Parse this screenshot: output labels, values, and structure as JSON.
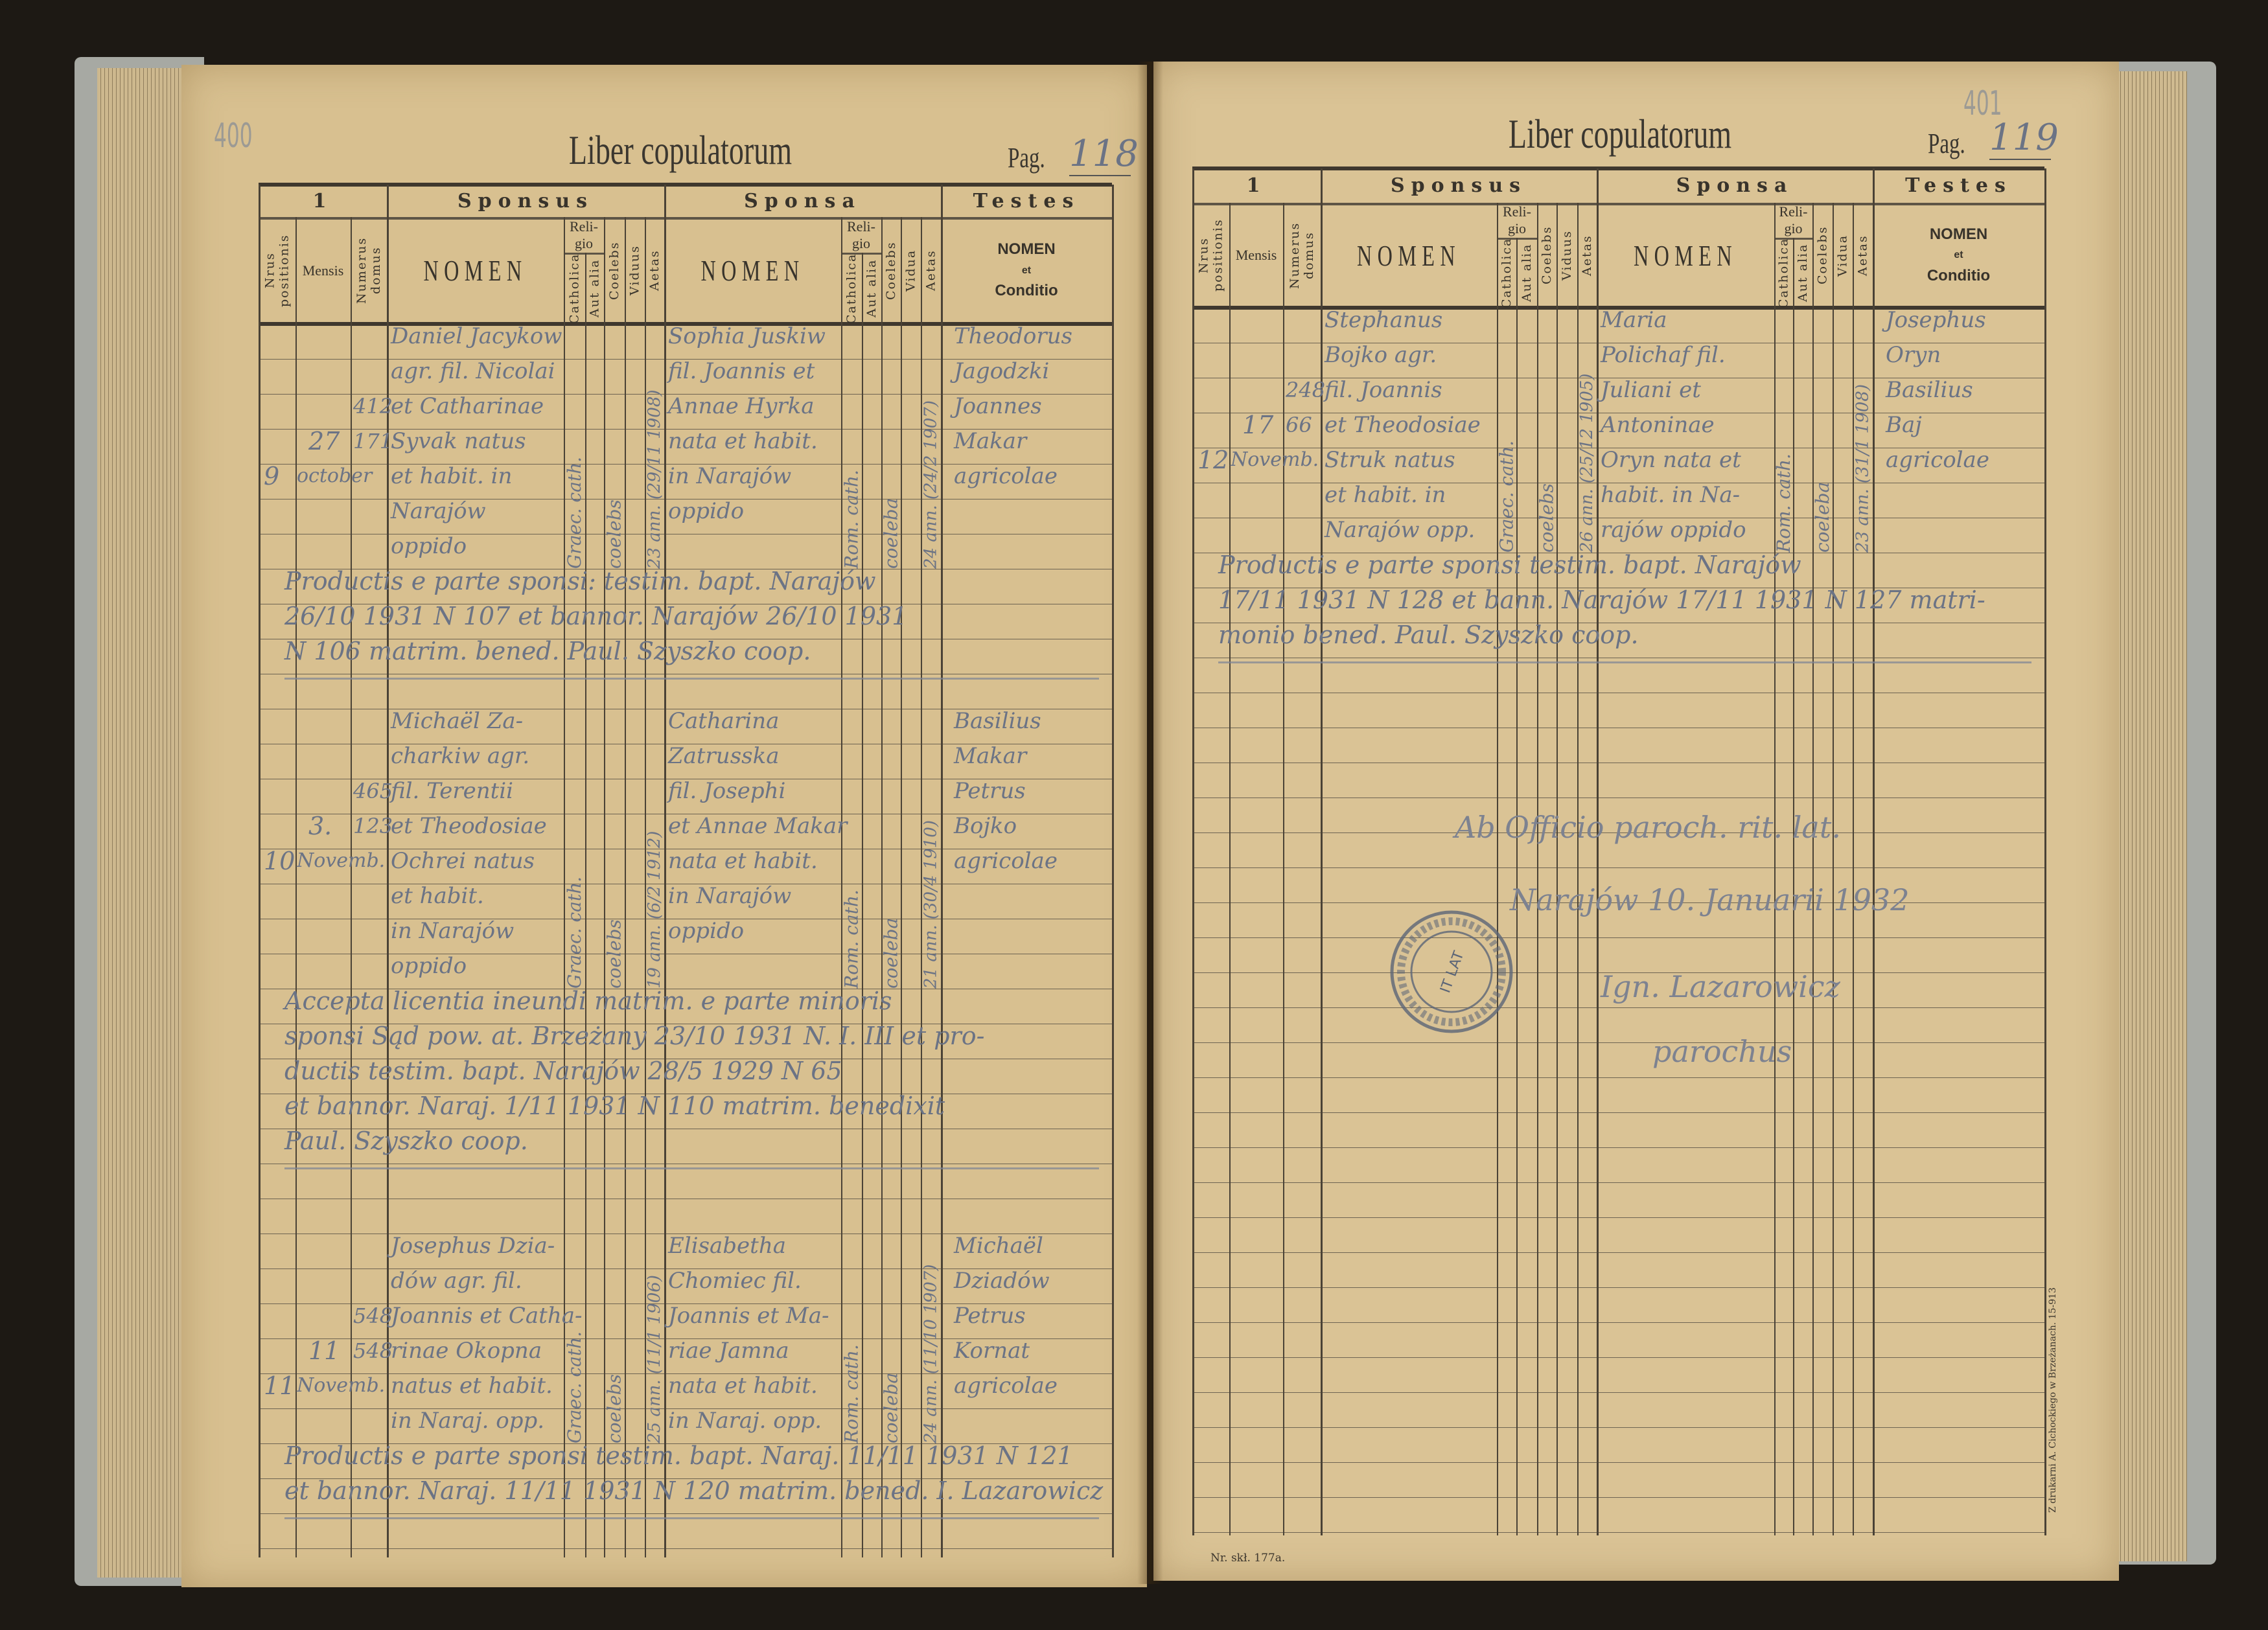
{
  "pages": [
    {
      "title": "Liber copulatorum",
      "pag_label": "Pag.",
      "pag_number": "118",
      "pencil_folio": "400",
      "header": {
        "group_1": "1",
        "sponsus": "Sponsus",
        "sponsa": "Sponsa",
        "testes": "Testes",
        "nrus_positionis": "Nrus positionis",
        "mensis": "Mensis",
        "numerus_domus": "Numerus domus",
        "nomen": "NOMEN",
        "religio": "Reli-gio",
        "catholica": "Catholica",
        "aut_alia": "Aut alia",
        "coelebs": "Coelebs",
        "viduus": "Viduus",
        "vidua": "Vidua",
        "aetas": "Aetas",
        "testes_nomen": "NOMEN",
        "testes_et": "et",
        "testes_conditio": "Conditio"
      },
      "entries": [
        {
          "nr": "9",
          "day": "27",
          "month": "october",
          "domus_top": "412",
          "domus_bottom": "171",
          "sponsus": [
            "Daniel Jacykow",
            "agr. fil. Nicolai",
            "et Catharinae",
            "Syvak natus",
            "et habit. in",
            "Narajów",
            "oppido"
          ],
          "sponsus_religio": "Graec. cath.",
          "sponsus_status": "coelebs",
          "sponsus_aetas": "23 ann. (29/11 1908)",
          "sponsa": [
            "Sophia Juskiw",
            "fil. Joannis et",
            "Annae Hyrka",
            "nata et habit.",
            "in Narajów",
            "oppido"
          ],
          "sponsa_religio": "Rom. cath.",
          "sponsa_status": "coeleba",
          "sponsa_aetas": "24 ann. (24/2 1907)",
          "testes": [
            "Theodorus",
            "Jagodzki",
            "Joannes",
            "Makar",
            "agricolae"
          ],
          "remark": [
            "Productis e parte sponsi: testim. bapt. Narajów",
            "26/10 1931 N 107 et bannor. Narajów 26/10 1931",
            "N 106 matrim. bened. Paul. Szyszko coop."
          ]
        },
        {
          "nr": "10",
          "day": "3.",
          "month": "Novemb.",
          "domus_top": "465",
          "domus_bottom": "123",
          "sponsus": [
            "Michaël Za-",
            "charkiw agr.",
            "fil. Terentii",
            "et Theodosiae",
            "Ochrei natus",
            "et habit.",
            "in Narajów",
            "oppido"
          ],
          "sponsus_religio": "Graec. cath.",
          "sponsus_status": "coelebs",
          "sponsus_aetas": "19 ann. (6/2 1912)",
          "sponsa": [
            "Catharina",
            "Zatrusska",
            "fil. Josephi",
            "et Annae Makar",
            "nata et habit.",
            "in Narajów",
            "oppido"
          ],
          "sponsa_religio": "Rom. cath.",
          "sponsa_status": "coeleba",
          "sponsa_aetas": "21 ann. (30/4 1910)",
          "testes": [
            "Basilius",
            "Makar",
            "Petrus",
            "Bojko",
            "agricolae"
          ],
          "remark": [
            "Accepta licentia ineundi matrim. e parte minoris",
            "sponsi Sąd pow. at. Brzeżany 23/10 1931 N. I. III et pro-",
            "ductis testim. bapt. Narajów 28/5 1929 N 65",
            "et bannor. Naraj. 1/11 1931 N 110 matrim. benedixit",
            "Paul. Szyszko coop."
          ]
        },
        {
          "nr": "11",
          "day": "11",
          "month": "Novemb.",
          "domus_top": "548",
          "domus_bottom": "548",
          "sponsus": [
            "Josephus Dzia-",
            "dów agr. fil.",
            "Joannis et Catha-",
            "rinae Okopna",
            "natus et habit.",
            "in Naraj. opp."
          ],
          "sponsus_religio": "Graec. cath.",
          "sponsus_status": "coelebs",
          "sponsus_aetas": "25 ann. (11/1 1906)",
          "sponsa": [
            "Elisabetha",
            "Chomiec fil.",
            "Joannis et Ma-",
            "riae Jamna",
            "nata et habit.",
            "in Naraj. opp."
          ],
          "sponsa_religio": "Rom. cath.",
          "sponsa_status": "coeleba",
          "sponsa_aetas": "24 ann. (11/10 1907)",
          "testes": [
            "Michaël",
            "Dziadów",
            "Petrus",
            "Kornat",
            "agricolae"
          ],
          "remark": [
            "Productis e parte sponsi testim. bapt. Naraj. 11/11 1931 N 121",
            "et bannor. Naraj. 11/11 1931 N 120 matrim. bened. I. Lazarowicz"
          ]
        }
      ]
    },
    {
      "title": "Liber copulatorum",
      "pag_label": "Pag.",
      "pag_number": "119",
      "pencil_folio": "401",
      "header": {
        "group_1": "1",
        "sponsus": "Sponsus",
        "sponsa": "Sponsa",
        "testes": "Testes",
        "nrus_positionis": "Nrus positionis",
        "mensis": "Mensis",
        "numerus_domus": "Numerus domus",
        "nomen": "NOMEN",
        "religio": "Reli-gio",
        "catholica": "Catholica",
        "aut_alia": "Aut alia",
        "coelebs": "Coelebs",
        "viduus": "Viduus",
        "vidua": "Vidua",
        "aetas": "Aetas",
        "testes_nomen": "NOMEN",
        "testes_et": "et",
        "testes_conditio": "Conditio"
      },
      "entries": [
        {
          "nr": "12",
          "day": "17",
          "month": "Novemb.",
          "domus_top": "248",
          "domus_bottom": "66",
          "sponsus": [
            "Stephanus",
            "Bojko agr.",
            "fil. Joannis",
            "et Theodosiae",
            "Struk natus",
            "et habit. in",
            "Narajów opp."
          ],
          "sponsus_religio": "Graec. cath.",
          "sponsus_status": "coelebs",
          "sponsus_aetas": "26 ann. (25/12 1905)",
          "sponsa": [
            "Maria",
            "Polichaf fil.",
            "Juliani et",
            "Antoninae",
            "Oryn nata et",
            "habit. in Na-",
            "rajów oppido"
          ],
          "sponsa_religio": "Rom. cath.",
          "sponsa_status": "coeleba",
          "sponsa_aetas": "23 ann. (31/1 1908)",
          "testes": [
            "Josephus",
            "Oryn",
            "Basilius",
            "Baj",
            "agricolae"
          ],
          "remark": [
            "Productis e parte sponsi testim. bapt. Narajów",
            "17/11 1931 N 128 et bann. Narajów 17/11 1931 N 127 matri-",
            "monio bened. Paul. Szyszko coop."
          ]
        }
      ],
      "closing": [
        "Ab Officio paroch. rit. lat.",
        "Narajów 10. Januarii 1932",
        "Ign. Lazarowicz",
        "parochus"
      ],
      "stamp_text": "IT LAT",
      "footer": "Nr. skł. 177a.",
      "printer": "Z drukarni A. Cichockiego w Brzeżanach. 15-913"
    }
  ],
  "colors": {
    "paper": "#d8c090",
    "ink_print": "#38332b",
    "ink_hand": "#6b7385",
    "cover": "#a7a9a3"
  }
}
